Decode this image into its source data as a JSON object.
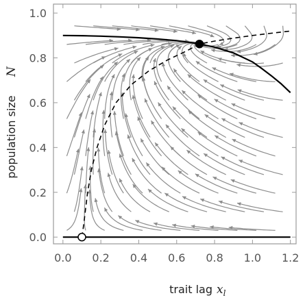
{
  "chart_data": {
    "type": "line",
    "title": "",
    "xlabel": "trait lag",
    "xlabel_symbol": "x",
    "xlabel_subscript": "l",
    "ylabel": "population size",
    "ylabel_symbol": "N",
    "xlim": [
      -0.05,
      1.23
    ],
    "ylim": [
      -0.03,
      1.04
    ],
    "x_ticks": [
      "0.0",
      "0.2",
      "0.4",
      "0.6",
      "0.8",
      "1.0",
      "1.2"
    ],
    "y_ticks": [
      "0.0",
      "0.2",
      "0.4",
      "0.6",
      "0.8",
      "1.0"
    ],
    "grid": false,
    "legend": "none",
    "series": [
      {
        "style": "solid",
        "x": [
          0.0,
          0.1,
          0.2,
          0.3,
          0.4,
          0.5,
          0.6,
          0.7,
          0.8,
          0.9,
          1.0,
          1.05,
          1.1,
          1.15,
          1.2
        ],
        "y": [
          0.9,
          0.899,
          0.897,
          0.894,
          0.89,
          0.884,
          0.877,
          0.865,
          0.848,
          0.822,
          0.782,
          0.752,
          0.72,
          0.685,
          0.645
        ]
      },
      {
        "style": "solid",
        "x": [
          0.0,
          1.2
        ],
        "y": [
          0.0,
          0.0
        ]
      },
      {
        "style": "dashed",
        "x": [
          0.1,
          0.11,
          0.12,
          0.13,
          0.15,
          0.18,
          0.22,
          0.28,
          0.36,
          0.45,
          0.55,
          0.65,
          0.72,
          0.8,
          0.9,
          1.0,
          1.1,
          1.2
        ],
        "y": [
          0.0,
          0.06,
          0.13,
          0.2,
          0.3,
          0.4,
          0.5,
          0.6,
          0.68,
          0.74,
          0.79,
          0.83,
          0.862,
          0.875,
          0.888,
          0.9,
          0.91,
          0.92
        ]
      }
    ],
    "points": [
      {
        "x": 0.72,
        "y": 0.862,
        "marker": "filled"
      },
      {
        "x": 0.1,
        "y": 0.0,
        "marker": "open"
      }
    ],
    "stream_colors": {
      "stream": "#8c8c8c",
      "curve": "#000000",
      "frame": "#9a9a9a"
    }
  }
}
